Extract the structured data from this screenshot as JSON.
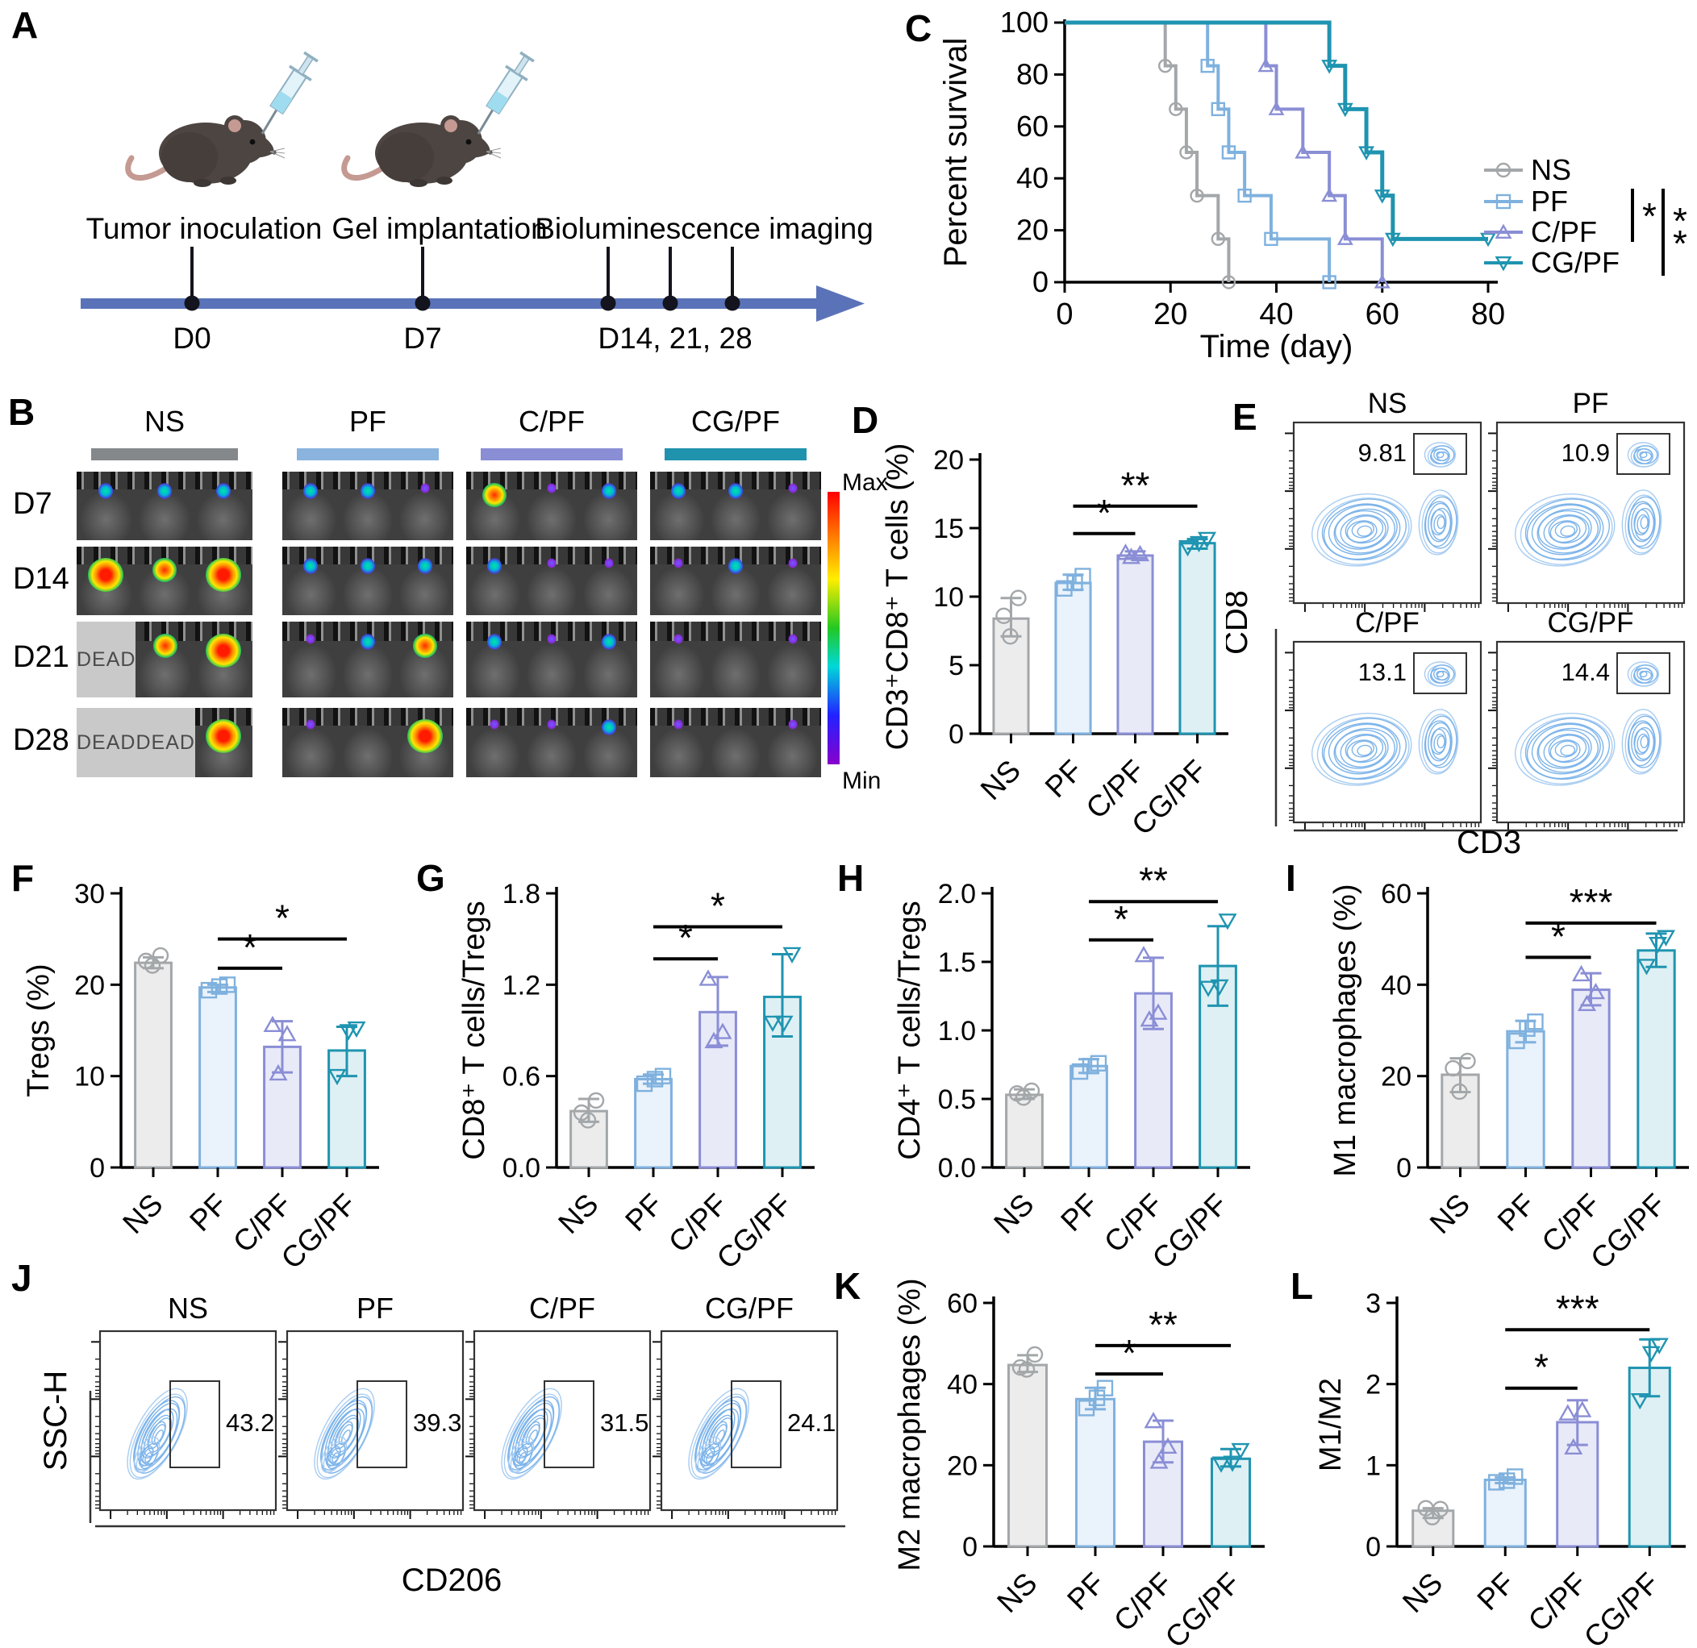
{
  "figure_type": "multi-panel scientific figure",
  "colors": {
    "groups": [
      {
        "name": "NS",
        "stroke": "#a3a7aa",
        "fill": "#ececec",
        "marker": "circle"
      },
      {
        "name": "PF",
        "stroke": "#7fb1de",
        "fill": "#eaf2fb",
        "marker": "square"
      },
      {
        "name": "C/PF",
        "stroke": "#8a8ed5",
        "fill": "#e9eaf8",
        "marker": "triangle-up"
      },
      {
        "name": "CG/PF",
        "stroke": "#1f94b0",
        "fill": "#def0f4",
        "marker": "triangle-down"
      }
    ],
    "timeline": "#5a73b8",
    "significance": "#000000"
  },
  "panels": {
    "A": {
      "label": "A",
      "events": [
        {
          "title": "Tumor inoculation",
          "day": "D0"
        },
        {
          "title": "Gel implantation",
          "day": "D7"
        },
        {
          "title": "Bioluminescence imaging",
          "day": "D14, 21, 28"
        }
      ]
    },
    "B": {
      "label": "B",
      "groups": [
        "NS",
        "PF",
        "C/PF",
        "CG/PF"
      ],
      "group_bar_colors": [
        "#85888b",
        "#8ab3dd",
        "#8a8ed5",
        "#1f93ae"
      ],
      "rows": [
        "D7",
        "D14",
        "D21",
        "D28"
      ],
      "dead_label": "DEAD",
      "colorbar": {
        "top": "Max",
        "bottom": "Min"
      },
      "spots": [
        [
          [
            2,
            2,
            2
          ],
          [
            2,
            2,
            1
          ],
          [
            3,
            1,
            2
          ],
          [
            2,
            2,
            1
          ]
        ],
        [
          [
            4,
            3,
            4
          ],
          [
            2,
            2,
            2
          ],
          [
            2,
            1,
            1
          ],
          [
            1,
            2,
            1
          ]
        ],
        [
          [
            -1,
            3,
            4
          ],
          [
            1,
            2,
            3
          ],
          [
            2,
            1,
            2
          ],
          [
            1,
            0,
            1
          ]
        ],
        [
          [
            -1,
            -1,
            4
          ],
          [
            1,
            0,
            4
          ],
          [
            1,
            1,
            2
          ],
          [
            1,
            0,
            1
          ]
        ]
      ]
    },
    "C": {
      "label": "C"
    },
    "D": {
      "label": "D"
    },
    "E": {
      "label": "E",
      "xlabel": "CD3",
      "ylabel": "CD8",
      "plots": [
        {
          "name": "NS",
          "gate_value": "9.81"
        },
        {
          "name": "PF",
          "gate_value": "10.9"
        },
        {
          "name": "C/PF",
          "gate_value": "13.1"
        },
        {
          "name": "CG/PF",
          "gate_value": "14.4"
        }
      ]
    },
    "F": {
      "label": "F"
    },
    "G": {
      "label": "G"
    },
    "H": {
      "label": "H"
    },
    "I": {
      "label": "I"
    },
    "J": {
      "label": "J",
      "xlabel": "CD206",
      "ylabel": "SSC-H",
      "plots": [
        {
          "name": "NS",
          "gate_value": "43.2"
        },
        {
          "name": "PF",
          "gate_value": "39.3"
        },
        {
          "name": "C/PF",
          "gate_value": "31.5"
        },
        {
          "name": "CG/PF",
          "gate_value": "24.1"
        }
      ]
    },
    "K": {
      "label": "K"
    },
    "L": {
      "label": "L"
    }
  },
  "chart_data": [
    {
      "id": "C",
      "type": "line",
      "subtype": "kaplan_meier",
      "xlabel": "Time (day)",
      "ylabel": "Percent survival",
      "xlim": [
        0,
        80
      ],
      "xticks": [
        0,
        20,
        40,
        60,
        80
      ],
      "ylim": [
        0,
        100
      ],
      "yticks": [
        0,
        20,
        40,
        60,
        80,
        100
      ],
      "series": [
        {
          "name": "NS",
          "drop_days": [
            19,
            21,
            23,
            25,
            29,
            31
          ]
        },
        {
          "name": "PF",
          "drop_days": [
            27,
            29,
            31,
            34,
            39,
            50
          ]
        },
        {
          "name": "C/PF",
          "drop_days": [
            38,
            40,
            45,
            50,
            53,
            60
          ]
        },
        {
          "name": "CG/PF",
          "drop_days": [
            50,
            53,
            57,
            60,
            62
          ],
          "flat_until": 80
        }
      ],
      "legend": [
        "NS",
        "PF",
        "C/PF",
        "CG/PF"
      ],
      "significance": [
        {
          "a": "PF",
          "b": "C/PF",
          "label": "*"
        },
        {
          "a": "PF",
          "b": "CG/PF",
          "label": "**"
        }
      ]
    },
    {
      "id": "D",
      "type": "bar",
      "ylabel": "CD3⁺CD8⁺ T cells  (%)",
      "categories": [
        "NS",
        "PF",
        "C/PF",
        "CG/PF"
      ],
      "values": [
        8.4,
        11.0,
        13.0,
        13.9
      ],
      "errors": [
        [
          7.1,
          9.9
        ],
        [
          10.5,
          11.6
        ],
        [
          12.8,
          13.3
        ],
        [
          13.5,
          14.2
        ]
      ],
      "points": [
        [
          7.1,
          8.6,
          9.9
        ],
        [
          10.6,
          11.0,
          11.5
        ],
        [
          12.9,
          13.1,
          13.2
        ],
        [
          13.6,
          13.9,
          14.2
        ]
      ],
      "ylim": [
        0,
        20
      ],
      "yticks": [
        0,
        5,
        10,
        15,
        20
      ],
      "ytick_labels": [
        "0",
        "5",
        "10",
        "15",
        "20"
      ],
      "sig": [
        {
          "a": 1,
          "b": 2,
          "y": 14.6,
          "label": "*"
        },
        {
          "a": 1,
          "b": 3,
          "y": 16.6,
          "label": "**"
        }
      ]
    },
    {
      "id": "F",
      "type": "bar",
      "ylabel": "Tregs (%)",
      "categories": [
        "NS",
        "PF",
        "C/PF",
        "CG/PF"
      ],
      "values": [
        22.4,
        19.7,
        13.2,
        12.8
      ],
      "errors": [
        [
          21.8,
          23.0
        ],
        [
          19.2,
          20.0
        ],
        [
          10.4,
          16.0
        ],
        [
          10.0,
          15.4
        ]
      ],
      "points": [
        [
          22.1,
          22.6,
          23.2
        ],
        [
          19.4,
          19.8,
          20.0
        ],
        [
          10.3,
          14.6,
          15.6
        ],
        [
          10.0,
          14.9,
          15.2
        ]
      ],
      "ylim": [
        0,
        30
      ],
      "yticks": [
        0,
        10,
        20,
        30
      ],
      "ytick_labels": [
        "0",
        "10",
        "20",
        "30"
      ],
      "sig": [
        {
          "a": 1,
          "b": 2,
          "y": 21.8,
          "label": "*"
        },
        {
          "a": 1,
          "b": 3,
          "y": 25.0,
          "label": "*"
        }
      ]
    },
    {
      "id": "G",
      "type": "bar",
      "ylabel": "CD8⁺ T cells/Tregs",
      "categories": [
        "NS",
        "PF",
        "C/PF",
        "CG/PF"
      ],
      "values": [
        0.37,
        0.58,
        1.02,
        1.12
      ],
      "errors": [
        [
          0.3,
          0.45
        ],
        [
          0.55,
          0.61
        ],
        [
          0.8,
          1.25
        ],
        [
          0.86,
          1.4
        ]
      ],
      "points": [
        [
          0.31,
          0.36,
          0.44
        ],
        [
          0.55,
          0.58,
          0.6
        ],
        [
          0.83,
          0.89,
          1.24
        ],
        [
          0.95,
          0.95,
          1.4
        ]
      ],
      "ylim": [
        0,
        1.8
      ],
      "yticks": [
        0,
        0.6,
        1.2,
        1.8
      ],
      "ytick_labels": [
        "0.0",
        "0.6",
        "1.2",
        "1.8"
      ],
      "sig": [
        {
          "a": 1,
          "b": 2,
          "y": 1.37,
          "label": "*"
        },
        {
          "a": 1,
          "b": 3,
          "y": 1.58,
          "label": "*"
        }
      ]
    },
    {
      "id": "H",
      "type": "bar",
      "ylabel": "CD4⁺ T cells/Tregs",
      "categories": [
        "NS",
        "PF",
        "C/PF",
        "CG/PF"
      ],
      "values": [
        0.53,
        0.74,
        1.27,
        1.47
      ],
      "errors": [
        [
          0.5,
          0.57
        ],
        [
          0.69,
          0.79
        ],
        [
          1.01,
          1.53
        ],
        [
          1.18,
          1.76
        ]
      ],
      "points": [
        [
          0.51,
          0.54,
          0.56
        ],
        [
          0.7,
          0.74,
          0.76
        ],
        [
          1.08,
          1.13,
          1.55
        ],
        [
          1.31,
          1.32,
          1.8
        ]
      ],
      "ylim": [
        0,
        2.0
      ],
      "yticks": [
        0,
        0.5,
        1.0,
        1.5,
        2.0
      ],
      "ytick_labels": [
        "0.0",
        "0.5",
        "1.0",
        "1.5",
        "2.0"
      ],
      "sig": [
        {
          "a": 1,
          "b": 2,
          "y": 1.66,
          "label": "*"
        },
        {
          "a": 1,
          "b": 3,
          "y": 1.94,
          "label": "**"
        }
      ]
    },
    {
      "id": "I",
      "type": "bar",
      "ylabel": "M1 macrophages (%)",
      "categories": [
        "NS",
        "PF",
        "C/PF",
        "CG/PF"
      ],
      "values": [
        20.3,
        29.8,
        38.9,
        47.5
      ],
      "errors": [
        [
          16.5,
          23.9
        ],
        [
          27.4,
          32.1
        ],
        [
          35.5,
          42.5
        ],
        [
          43.9,
          51.2
        ]
      ],
      "points": [
        [
          16.6,
          21.7,
          23.3
        ],
        [
          27.7,
          30.4,
          31.9
        ],
        [
          35.8,
          38.4,
          42.3
        ],
        [
          44.1,
          48.9,
          50.4
        ]
      ],
      "ylim": [
        0,
        60
      ],
      "yticks": [
        0,
        20,
        40,
        60
      ],
      "ytick_labels": [
        "0",
        "20",
        "40",
        "60"
      ],
      "sig": [
        {
          "a": 1,
          "b": 2,
          "y": 46,
          "label": "*"
        },
        {
          "a": 1,
          "b": 3,
          "y": 53.5,
          "label": "***"
        }
      ]
    },
    {
      "id": "K",
      "type": "bar",
      "ylabel": "M2 macrophages (%)",
      "categories": [
        "NS",
        "PF",
        "C/PF",
        "CG/PF"
      ],
      "values": [
        44.7,
        36.3,
        25.8,
        21.6
      ],
      "errors": [
        [
          43.0,
          47.1
        ],
        [
          33.8,
          39.1
        ],
        [
          20.7,
          31.0
        ],
        [
          19.7,
          24.0
        ]
      ],
      "points": [
        [
          43.6,
          44.1,
          47.3
        ],
        [
          34.1,
          36.6,
          39.0
        ],
        [
          20.9,
          24.6,
          30.9
        ],
        [
          20.4,
          20.6,
          23.7
        ]
      ],
      "ylim": [
        0,
        60
      ],
      "yticks": [
        0,
        20,
        40,
        60
      ],
      "ytick_labels": [
        "0",
        "20",
        "40",
        "60"
      ],
      "sig": [
        {
          "a": 1,
          "b": 2,
          "y": 42.5,
          "label": "*"
        },
        {
          "a": 1,
          "b": 3,
          "y": 49.5,
          "label": "**"
        }
      ]
    },
    {
      "id": "L",
      "type": "bar",
      "ylabel": "M1/M2",
      "categories": [
        "NS",
        "PF",
        "C/PF",
        "CG/PF"
      ],
      "values": [
        0.44,
        0.82,
        1.53,
        2.2
      ],
      "errors": [
        [
          0.35,
          0.47
        ],
        [
          0.78,
          0.85
        ],
        [
          1.25,
          1.8
        ],
        [
          1.85,
          2.55
        ]
      ],
      "points": [
        [
          0.36,
          0.47,
          0.46
        ],
        [
          0.79,
          0.81,
          0.86
        ],
        [
          1.22,
          1.68,
          1.64
        ],
        [
          1.8,
          2.38,
          2.48
        ]
      ],
      "ylim": [
        0,
        3
      ],
      "yticks": [
        0,
        1,
        2,
        3
      ],
      "ytick_labels": [
        "0",
        "1",
        "2",
        "3"
      ],
      "sig": [
        {
          "a": 1,
          "b": 2,
          "y": 1.95,
          "label": "*"
        },
        {
          "a": 1,
          "b": 3,
          "y": 2.67,
          "label": "***"
        }
      ]
    }
  ]
}
